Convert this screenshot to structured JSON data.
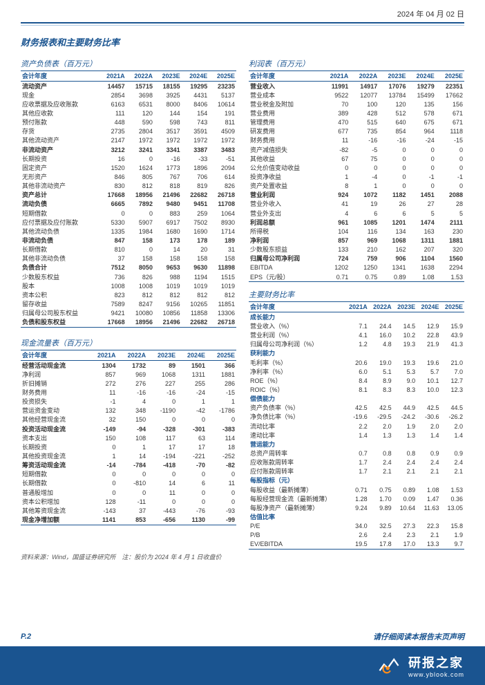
{
  "header_date": "2024 年 04 月 02 日",
  "main_title": "财务报表和主要财务比率",
  "source_note": "资料来源：Wind，国盛证券研究所　注：股价为 2024 年 4 月 1 日收盘价",
  "page_num": "P.2",
  "footer_note": "请仔细阅读本报告末页声明",
  "brand_cn": "研报之家",
  "brand_url": "www.yblook.com",
  "colors": {
    "blue": "#1a5490"
  },
  "balance": {
    "title": "资产负债表（百万元）",
    "header": [
      "会计年度",
      "2021A",
      "2022A",
      "2023E",
      "2024E",
      "2025E"
    ],
    "rows": [
      {
        "b": 1,
        "c": [
          "流动资产",
          "14457",
          "15715",
          "18155",
          "19295",
          "23235"
        ]
      },
      {
        "c": [
          "现金",
          "2854",
          "3698",
          "3925",
          "4431",
          "5137"
        ]
      },
      {
        "c": [
          "应收票据及应收账款",
          "6163",
          "6531",
          "8000",
          "8406",
          "10614"
        ]
      },
      {
        "c": [
          "其他应收款",
          "111",
          "120",
          "144",
          "154",
          "191"
        ]
      },
      {
        "c": [
          "预付账款",
          "448",
          "590",
          "598",
          "743",
          "811"
        ]
      },
      {
        "c": [
          "存货",
          "2735",
          "2804",
          "3517",
          "3591",
          "4509"
        ]
      },
      {
        "c": [
          "其他流动资产",
          "2147",
          "1972",
          "1972",
          "1972",
          "1972"
        ]
      },
      {
        "b": 1,
        "c": [
          "非流动资产",
          "3212",
          "3241",
          "3341",
          "3387",
          "3483"
        ]
      },
      {
        "c": [
          "长期投资",
          "16",
          "0",
          "-16",
          "-33",
          "-51"
        ]
      },
      {
        "c": [
          "固定资产",
          "1520",
          "1624",
          "1773",
          "1896",
          "2094"
        ]
      },
      {
        "c": [
          "无形资产",
          "846",
          "805",
          "767",
          "706",
          "614"
        ]
      },
      {
        "c": [
          "其他非流动资产",
          "830",
          "812",
          "818",
          "819",
          "826"
        ]
      },
      {
        "b": 1,
        "c": [
          "资产总计",
          "17668",
          "18956",
          "21496",
          "22682",
          "26718"
        ]
      },
      {
        "b": 1,
        "c": [
          "流动负债",
          "6665",
          "7892",
          "9480",
          "9451",
          "11708"
        ]
      },
      {
        "c": [
          "短期借款",
          "0",
          "0",
          "883",
          "259",
          "1064"
        ]
      },
      {
        "c": [
          "应付票据及应付账款",
          "5330",
          "5907",
          "6917",
          "7502",
          "8930"
        ]
      },
      {
        "c": [
          "其他流动负债",
          "1335",
          "1984",
          "1680",
          "1690",
          "1714"
        ]
      },
      {
        "b": 1,
        "c": [
          "非流动负债",
          "847",
          "158",
          "173",
          "178",
          "189"
        ]
      },
      {
        "c": [
          "长期借款",
          "810",
          "0",
          "14",
          "20",
          "31"
        ]
      },
      {
        "c": [
          "其他非流动负债",
          "37",
          "158",
          "158",
          "158",
          "158"
        ]
      },
      {
        "b": 1,
        "c": [
          "负债合计",
          "7512",
          "8050",
          "9653",
          "9630",
          "11898"
        ]
      },
      {
        "c": [
          "少数股东权益",
          "736",
          "826",
          "988",
          "1194",
          "1515"
        ]
      },
      {
        "c": [
          "股本",
          "1008",
          "1008",
          "1019",
          "1019",
          "1019"
        ]
      },
      {
        "c": [
          "资本公积",
          "823",
          "812",
          "812",
          "812",
          "812"
        ]
      },
      {
        "c": [
          "留存收益",
          "7589",
          "8247",
          "9156",
          "10265",
          "11851"
        ]
      },
      {
        "c": [
          "归属母公司股东权益",
          "9421",
          "10080",
          "10856",
          "11858",
          "13306"
        ]
      },
      {
        "b": 1,
        "c": [
          "负债和股东权益",
          "17668",
          "18956",
          "21496",
          "22682",
          "26718"
        ]
      }
    ]
  },
  "cashflow": {
    "title": "现金流量表（百万元）",
    "header": [
      "会计年度",
      "2021A",
      "2022A",
      "2023E",
      "2024E",
      "2025E"
    ],
    "rows": [
      {
        "b": 1,
        "c": [
          "经营活动现金流",
          "1304",
          "1732",
          "89",
          "1501",
          "366"
        ]
      },
      {
        "c": [
          "净利润",
          "857",
          "969",
          "1068",
          "1311",
          "1881"
        ]
      },
      {
        "c": [
          "折旧摊销",
          "272",
          "276",
          "227",
          "255",
          "286"
        ]
      },
      {
        "c": [
          "财务费用",
          "11",
          "-16",
          "-16",
          "-24",
          "-15"
        ]
      },
      {
        "c": [
          "投资损失",
          "-1",
          "4",
          "0",
          "1",
          "1"
        ]
      },
      {
        "c": [
          "营运资金变动",
          "132",
          "348",
          "-1190",
          "-42",
          "-1786"
        ]
      },
      {
        "c": [
          "其他经营现金流",
          "32",
          "150",
          "0",
          "0",
          "0"
        ]
      },
      {
        "b": 1,
        "c": [
          "投资活动现金流",
          "-149",
          "-94",
          "-328",
          "-301",
          "-383"
        ]
      },
      {
        "c": [
          "资本支出",
          "150",
          "108",
          "117",
          "63",
          "114"
        ]
      },
      {
        "c": [
          "长期投资",
          "0",
          "1",
          "17",
          "17",
          "18"
        ]
      },
      {
        "c": [
          "其他投资现金流",
          "1",
          "14",
          "-194",
          "-221",
          "-252"
        ]
      },
      {
        "b": 1,
        "c": [
          "筹资活动现金流",
          "-14",
          "-784",
          "-418",
          "-70",
          "-82"
        ]
      },
      {
        "c": [
          "短期借款",
          "0",
          "0",
          "0",
          "0",
          "0"
        ]
      },
      {
        "c": [
          "长期借款",
          "0",
          "-810",
          "14",
          "6",
          "11"
        ]
      },
      {
        "c": [
          "普通股增加",
          "0",
          "0",
          "11",
          "0",
          "0"
        ]
      },
      {
        "c": [
          "资本公积增加",
          "128",
          "-11",
          "0",
          "0",
          "0"
        ]
      },
      {
        "c": [
          "其他筹资现金流",
          "-143",
          "37",
          "-443",
          "-76",
          "-93"
        ]
      },
      {
        "b": 1,
        "c": [
          "现金净增加额",
          "1141",
          "853",
          "-656",
          "1130",
          "-99"
        ]
      }
    ]
  },
  "income": {
    "title": "利润表（百万元）",
    "header": [
      "会计年度",
      "2021A",
      "2022A",
      "2023E",
      "2024E",
      "2025E"
    ],
    "rows": [
      {
        "b": 1,
        "c": [
          "营业收入",
          "11991",
          "14917",
          "17076",
          "19279",
          "22351"
        ]
      },
      {
        "c": [
          "营业成本",
          "9522",
          "12077",
          "13784",
          "15499",
          "17662"
        ]
      },
      {
        "c": [
          "营业税金及附加",
          "70",
          "100",
          "120",
          "135",
          "156"
        ]
      },
      {
        "c": [
          "营业费用",
          "389",
          "428",
          "512",
          "578",
          "671"
        ]
      },
      {
        "c": [
          "管理费用",
          "470",
          "515",
          "640",
          "675",
          "671"
        ]
      },
      {
        "c": [
          "研发费用",
          "677",
          "735",
          "854",
          "964",
          "1118"
        ]
      },
      {
        "c": [
          "财务费用",
          "11",
          "-16",
          "-16",
          "-24",
          "-15"
        ]
      },
      {
        "c": [
          "资产减值损失",
          "-82",
          "-5",
          "0",
          "0",
          "0"
        ]
      },
      {
        "c": [
          "其他收益",
          "67",
          "75",
          "0",
          "0",
          "0"
        ]
      },
      {
        "c": [
          "公允价值变动收益",
          "0",
          "0",
          "0",
          "0",
          "0"
        ]
      },
      {
        "c": [
          "投资净收益",
          "1",
          "-4",
          "0",
          "-1",
          "-1"
        ]
      },
      {
        "c": [
          "资产处置收益",
          "8",
          "1",
          "0",
          "0",
          "0"
        ]
      },
      {
        "b": 1,
        "c": [
          "营业利润",
          "924",
          "1072",
          "1182",
          "1451",
          "2088"
        ]
      },
      {
        "c": [
          "营业外收入",
          "41",
          "19",
          "26",
          "27",
          "28"
        ]
      },
      {
        "c": [
          "营业外支出",
          "4",
          "6",
          "6",
          "5",
          "5"
        ]
      },
      {
        "b": 1,
        "c": [
          "利润总额",
          "961",
          "1085",
          "1201",
          "1474",
          "2111"
        ]
      },
      {
        "c": [
          "所得税",
          "104",
          "116",
          "134",
          "163",
          "230"
        ]
      },
      {
        "b": 1,
        "c": [
          "净利润",
          "857",
          "969",
          "1068",
          "1311",
          "1881"
        ]
      },
      {
        "c": [
          "少数股东损益",
          "133",
          "210",
          "162",
          "207",
          "320"
        ]
      },
      {
        "b": 1,
        "c": [
          "归属母公司净利润",
          "724",
          "759",
          "906",
          "1104",
          "1560"
        ]
      },
      {
        "c": [
          "EBITDA",
          "1202",
          "1250",
          "1341",
          "1638",
          "2294"
        ]
      },
      {
        "c": [
          "EPS（元/股）",
          "0.71",
          "0.75",
          "0.89",
          "1.08",
          "1.53"
        ]
      }
    ]
  },
  "ratios": {
    "title": "主要财务比率",
    "header": [
      "会计年度",
      "2021A",
      "2022A",
      "2023E",
      "2024E",
      "2025E"
    ],
    "sections": [
      {
        "name": "成长能力",
        "rows": [
          {
            "c": [
              "营业收入（%）",
              "7.1",
              "24.4",
              "14.5",
              "12.9",
              "15.9"
            ]
          },
          {
            "c": [
              "营业利润（%）",
              "4.1",
              "16.0",
              "10.2",
              "22.8",
              "43.9"
            ]
          },
          {
            "c": [
              "归属母公司净利润（%）",
              "1.2",
              "4.8",
              "19.3",
              "21.9",
              "41.3"
            ]
          }
        ]
      },
      {
        "name": "获利能力",
        "rows": [
          {
            "c": [
              "毛利率（%）",
              "20.6",
              "19.0",
              "19.3",
              "19.6",
              "21.0"
            ]
          },
          {
            "c": [
              "净利率（%）",
              "6.0",
              "5.1",
              "5.3",
              "5.7",
              "7.0"
            ]
          },
          {
            "c": [
              "ROE（%）",
              "8.4",
              "8.9",
              "9.0",
              "10.1",
              "12.7"
            ]
          },
          {
            "c": [
              "ROIC（%）",
              "8.1",
              "8.3",
              "8.3",
              "10.0",
              "12.3"
            ]
          }
        ]
      },
      {
        "name": "偿债能力",
        "rows": [
          {
            "c": [
              "资产负债率（%）",
              "42.5",
              "42.5",
              "44.9",
              "42.5",
              "44.5"
            ]
          },
          {
            "c": [
              "净负债比率（%）",
              "-19.6",
              "-29.5",
              "-24.2",
              "-30.6",
              "-26.2"
            ]
          },
          {
            "c": [
              "流动比率",
              "2.2",
              "2.0",
              "1.9",
              "2.0",
              "2.0"
            ]
          },
          {
            "c": [
              "速动比率",
              "1.4",
              "1.3",
              "1.3",
              "1.4",
              "1.4"
            ]
          }
        ]
      },
      {
        "name": "营运能力",
        "rows": [
          {
            "c": [
              "总资产周转率",
              "0.7",
              "0.8",
              "0.8",
              "0.9",
              "0.9"
            ]
          },
          {
            "c": [
              "应收账款周转率",
              "1.7",
              "2.4",
              "2.4",
              "2.4",
              "2.4"
            ]
          },
          {
            "c": [
              "应付账款周转率",
              "1.7",
              "2.1",
              "2.1",
              "2.1",
              "2.1"
            ]
          }
        ]
      },
      {
        "name": "每股指标（元）",
        "rows": [
          {
            "c": [
              "每股收益（最新摊薄）",
              "0.71",
              "0.75",
              "0.89",
              "1.08",
              "1.53"
            ]
          },
          {
            "c": [
              "每股经营现金流（最新摊薄）",
              "1.28",
              "1.70",
              "0.09",
              "1.47",
              "0.36"
            ]
          },
          {
            "c": [
              "每股净资产（最新摊薄）",
              "9.24",
              "9.89",
              "10.64",
              "11.63",
              "13.05"
            ]
          }
        ]
      },
      {
        "name": "估值比率",
        "rows": [
          {
            "c": [
              "P/E",
              "34.0",
              "32.5",
              "27.3",
              "22.3",
              "15.8"
            ]
          },
          {
            "c": [
              "P/B",
              "2.6",
              "2.4",
              "2.3",
              "2.1",
              "1.9"
            ]
          },
          {
            "c": [
              "EV/EBITDA",
              "19.5",
              "17.8",
              "17.0",
              "13.3",
              "9.7"
            ]
          }
        ]
      }
    ]
  }
}
